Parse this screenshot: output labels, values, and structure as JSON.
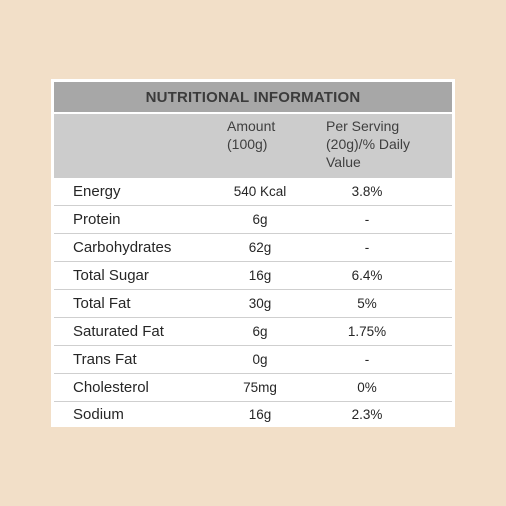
{
  "table": {
    "title": "NUTRITIONAL INFORMATION",
    "headers": {
      "amount": "Amount\n(100g)",
      "serving": "Per Serving\n(20g)/% Daily\nValue"
    },
    "rows": [
      {
        "name": "Energy",
        "amount": "540 Kcal",
        "serving": "3.8%"
      },
      {
        "name": "Protein",
        "amount": "6g",
        "serving": "-"
      },
      {
        "name": "Carbohydrates",
        "amount": "62g",
        "serving": "-"
      },
      {
        "name": "Total Sugar",
        "amount": "16g",
        "serving": "6.4%"
      },
      {
        "name": "Total Fat",
        "amount": "30g",
        "serving": "5%"
      },
      {
        "name": "Saturated Fat",
        "amount": "6g",
        "serving": "1.75%"
      },
      {
        "name": "Trans Fat",
        "amount": "0g",
        "serving": "-"
      },
      {
        "name": "Cholesterol",
        "amount": "75mg",
        "serving": "0%"
      },
      {
        "name": "Sodium",
        "amount": "16g",
        "serving": "2.3%"
      }
    ]
  }
}
